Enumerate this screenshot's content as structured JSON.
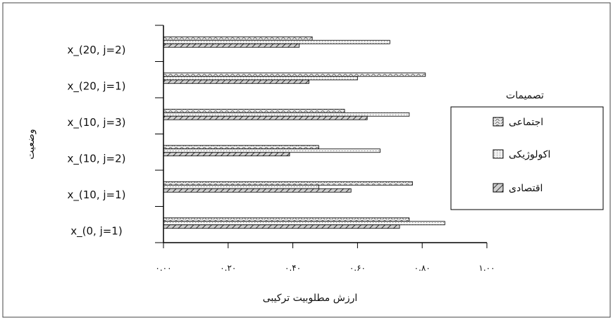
{
  "chart_data": {
    "type": "bar",
    "orientation": "horizontal",
    "categories": [
      "x_(0, j=1)",
      "x_(10, j=1)",
      "x_(10, j=2)",
      "x_(10, j=3)",
      "x_(20, j=1)",
      "x_(20, j=2)"
    ],
    "series": [
      {
        "name": "اجتماعی",
        "values": [
          0.76,
          0.77,
          0.48,
          0.56,
          0.81,
          0.46
        ],
        "pattern": "wave"
      },
      {
        "name": "اکولوژیکی",
        "values": [
          0.87,
          0.48,
          0.67,
          0.76,
          0.6,
          0.7
        ],
        "pattern": "dotted"
      },
      {
        "name": "اقتصادی",
        "values": [
          0.73,
          0.58,
          0.39,
          0.63,
          0.45,
          0.42
        ],
        "pattern": "diagonal"
      }
    ],
    "xlabel": "ارزش مطلوبیت ترکیبی",
    "ylabel": "وضعیت",
    "xlim": [
      0,
      1.0
    ],
    "x_tick_labels": [
      "۰.۰۰",
      "۰.۲۰",
      "۰.۴۰",
      "۰.۶۰",
      "۰.۸۰",
      "۱.۰۰"
    ],
    "legend_title": "تصمیمات",
    "legend_position": "right",
    "grid": false
  },
  "colors": {
    "bar_fill": "#d9d9d9",
    "bar_stroke": "#000000",
    "axis": "#000000",
    "background": "#ffffff"
  }
}
